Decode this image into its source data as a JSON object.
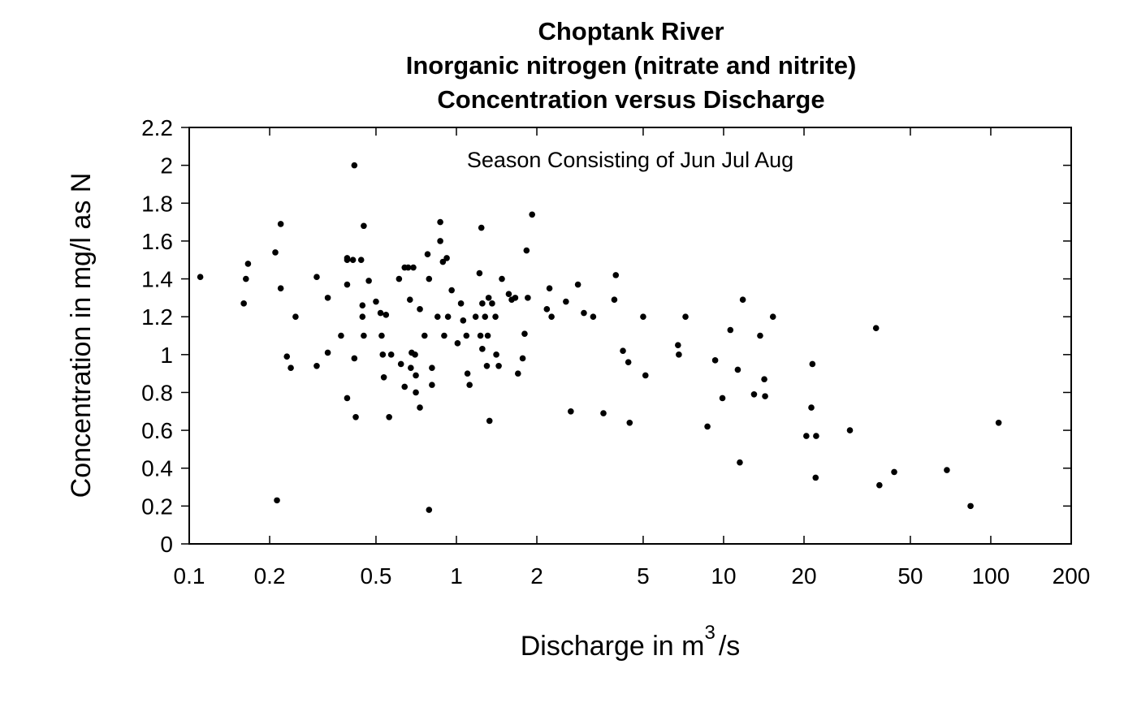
{
  "chart_data": {
    "type": "scatter",
    "title_lines": [
      "Choptank River",
      "Inorganic nitrogen (nitrate and nitrite)",
      "Concentration versus Discharge"
    ],
    "annotation": "Season Consisting of Jun Jul Aug",
    "xlabel": {
      "prefix": "Discharge in m",
      "sup": "3",
      "suffix": "/s"
    },
    "ylabel": "Concentration in mg/l as N",
    "x_scale": "log",
    "xlim": [
      0.1,
      200
    ],
    "ylim": [
      0,
      2.2
    ],
    "x_ticks": [
      0.1,
      0.2,
      0.5,
      1,
      2,
      5,
      10,
      20,
      50,
      100,
      200
    ],
    "x_tick_labels": [
      "0.1",
      "0.2",
      "0.5",
      "1",
      "2",
      "5",
      "10",
      "20",
      "50",
      "100",
      "200"
    ],
    "y_ticks": [
      0,
      0.2,
      0.4,
      0.6,
      0.8,
      1,
      1.2,
      1.4,
      1.6,
      1.8,
      2,
      2.2
    ],
    "y_tick_labels": [
      "0",
      "0.2",
      "0.4",
      "0.6",
      "0.8",
      "1",
      "1.2",
      "1.4",
      "1.6",
      "1.8",
      "2",
      "2.2"
    ],
    "grid": false,
    "points": [
      [
        0.11,
        1.41
      ],
      [
        0.16,
        1.27
      ],
      [
        0.163,
        1.4
      ],
      [
        0.166,
        1.48
      ],
      [
        0.21,
        1.54
      ],
      [
        0.213,
        0.23
      ],
      [
        0.22,
        1.69
      ],
      [
        0.22,
        1.35
      ],
      [
        0.232,
        0.99
      ],
      [
        0.24,
        0.93
      ],
      [
        0.25,
        1.2
      ],
      [
        0.3,
        1.41
      ],
      [
        0.3,
        0.94
      ],
      [
        0.33,
        1.3
      ],
      [
        0.33,
        1.01
      ],
      [
        0.37,
        1.1
      ],
      [
        0.39,
        1.5
      ],
      [
        0.39,
        1.51
      ],
      [
        0.39,
        1.37
      ],
      [
        0.39,
        0.77
      ],
      [
        0.41,
        1.5
      ],
      [
        0.415,
        2.0
      ],
      [
        0.415,
        0.98
      ],
      [
        0.42,
        0.67
      ],
      [
        0.44,
        1.5
      ],
      [
        0.445,
        1.26
      ],
      [
        0.445,
        1.2
      ],
      [
        0.45,
        1.68
      ],
      [
        0.45,
        1.1
      ],
      [
        0.47,
        1.39
      ],
      [
        0.5,
        1.28
      ],
      [
        0.52,
        1.22
      ],
      [
        0.525,
        1.1
      ],
      [
        0.53,
        1.0
      ],
      [
        0.535,
        0.88
      ],
      [
        0.545,
        1.21
      ],
      [
        0.56,
        0.67
      ],
      [
        0.57,
        1.0
      ],
      [
        0.61,
        1.4
      ],
      [
        0.62,
        0.95
      ],
      [
        0.64,
        1.46
      ],
      [
        0.66,
        1.46
      ],
      [
        0.64,
        0.83
      ],
      [
        0.67,
        1.29
      ],
      [
        0.675,
        0.93
      ],
      [
        0.68,
        1.01
      ],
      [
        0.69,
        1.46
      ],
      [
        0.705,
        0.89
      ],
      [
        0.7,
        1.0
      ],
      [
        0.705,
        0.8
      ],
      [
        0.73,
        1.24
      ],
      [
        0.73,
        0.72
      ],
      [
        0.76,
        1.1
      ],
      [
        0.78,
        1.53
      ],
      [
        0.79,
        1.4
      ],
      [
        0.79,
        0.18
      ],
      [
        0.81,
        0.93
      ],
      [
        0.81,
        0.84
      ],
      [
        0.85,
        1.2
      ],
      [
        0.87,
        1.7
      ],
      [
        0.87,
        1.6
      ],
      [
        0.89,
        1.49
      ],
      [
        0.9,
        1.1
      ],
      [
        0.92,
        1.51
      ],
      [
        0.93,
        1.2
      ],
      [
        0.96,
        1.34
      ],
      [
        1.01,
        1.06
      ],
      [
        1.04,
        1.27
      ],
      [
        1.06,
        1.18
      ],
      [
        1.09,
        1.1
      ],
      [
        1.1,
        0.9
      ],
      [
        1.12,
        0.84
      ],
      [
        1.18,
        1.2
      ],
      [
        1.22,
        1.43
      ],
      [
        1.23,
        1.1
      ],
      [
        1.24,
        1.67
      ],
      [
        1.25,
        1.27
      ],
      [
        1.25,
        1.03
      ],
      [
        1.28,
        1.2
      ],
      [
        1.3,
        0.94
      ],
      [
        1.31,
        1.1
      ],
      [
        1.32,
        1.3
      ],
      [
        1.33,
        0.65
      ],
      [
        1.36,
        1.27
      ],
      [
        1.4,
        1.2
      ],
      [
        1.41,
        1.0
      ],
      [
        1.44,
        0.94
      ],
      [
        1.48,
        1.4
      ],
      [
        1.57,
        1.32
      ],
      [
        1.61,
        1.29
      ],
      [
        1.66,
        1.3
      ],
      [
        1.7,
        0.9
      ],
      [
        1.77,
        0.98
      ],
      [
        1.8,
        1.11
      ],
      [
        1.83,
        1.55
      ],
      [
        1.85,
        1.3
      ],
      [
        1.92,
        1.74
      ],
      [
        2.18,
        1.24
      ],
      [
        2.23,
        1.35
      ],
      [
        2.27,
        1.2
      ],
      [
        2.57,
        1.28
      ],
      [
        2.68,
        0.7
      ],
      [
        2.85,
        1.37
      ],
      [
        3.0,
        1.22
      ],
      [
        3.25,
        1.2
      ],
      [
        3.55,
        0.69
      ],
      [
        3.9,
        1.29
      ],
      [
        3.95,
        1.42
      ],
      [
        4.2,
        1.02
      ],
      [
        4.4,
        0.96
      ],
      [
        4.45,
        0.64
      ],
      [
        5.0,
        1.2
      ],
      [
        5.1,
        0.89
      ],
      [
        6.75,
        1.05
      ],
      [
        6.8,
        1.0
      ],
      [
        7.2,
        1.2
      ],
      [
        8.7,
        0.62
      ],
      [
        9.3,
        0.97
      ],
      [
        9.9,
        0.77
      ],
      [
        10.6,
        1.13
      ],
      [
        11.3,
        0.92
      ],
      [
        11.5,
        0.43
      ],
      [
        11.8,
        1.29
      ],
      [
        13.0,
        0.79
      ],
      [
        13.7,
        1.1
      ],
      [
        14.2,
        0.87
      ],
      [
        14.3,
        0.78
      ],
      [
        15.3,
        1.2
      ],
      [
        20.4,
        0.57
      ],
      [
        21.3,
        0.72
      ],
      [
        21.5,
        0.95
      ],
      [
        22.2,
        0.57
      ],
      [
        22.1,
        0.35
      ],
      [
        29.7,
        0.6
      ],
      [
        37.2,
        1.14
      ],
      [
        38.3,
        0.31
      ],
      [
        43.5,
        0.38
      ],
      [
        68.5,
        0.39
      ],
      [
        84.0,
        0.2
      ],
      [
        107.0,
        0.64
      ]
    ]
  }
}
